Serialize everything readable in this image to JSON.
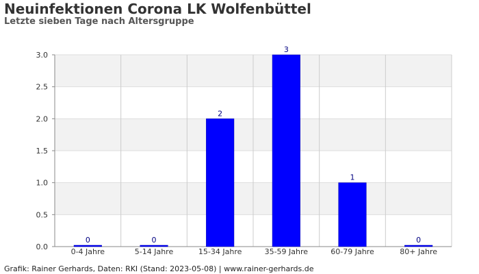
{
  "chart_data": {
    "type": "bar",
    "title": "Neuinfektionen Corona LK Wolfenbüttel",
    "subtitle": "Letzte sieben Tage nach Altersgruppe",
    "categories": [
      "0-4 Jahre",
      "5-14 Jahre",
      "15-34 Jahre",
      "35-59 Jahre",
      "60-79 Jahre",
      "80+ Jahre"
    ],
    "values": [
      0,
      0,
      2,
      3,
      1,
      0
    ],
    "data_labels": [
      "0",
      "0",
      "2",
      "3",
      "1",
      "0"
    ],
    "ylim": [
      0,
      3
    ],
    "yticks": [
      "0.0",
      "0.5",
      "1.0",
      "1.5",
      "2.0",
      "2.5",
      "3.0"
    ],
    "grid": true,
    "bar_color": "#0000ff"
  },
  "footer": "Grafik: Rainer Gerhards, Daten: RKI (Stand: 2023-05-08) | www.rainer-gerhards.de"
}
